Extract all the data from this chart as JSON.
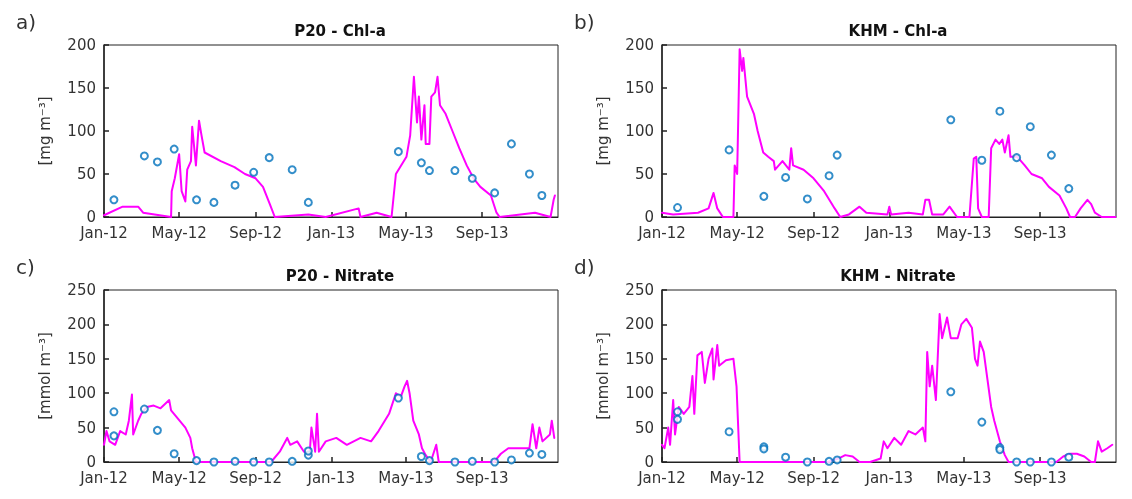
{
  "chart_data": [
    {
      "type": "line",
      "title": "P20 - Chl-a",
      "ylabel": "[mg m⁻³]",
      "annotations": [
        "a)"
      ],
      "xlim": [
        "2012-01-01",
        "2014-01-01"
      ],
      "xticks": [
        {
          "value": "2012-01-01",
          "label": "Jan-12"
        },
        {
          "value": "2012-05-01",
          "label": "May-12"
        },
        {
          "value": "2012-09-01",
          "label": "Sep-12"
        },
        {
          "value": "2013-01-01",
          "label": "Jan-13"
        },
        {
          "value": "2013-05-01",
          "label": "May-13"
        },
        {
          "value": "2013-09-01",
          "label": "Sep-13"
        }
      ],
      "ylim": [
        0,
        200
      ],
      "yticks": [
        0,
        50,
        100,
        150,
        200
      ],
      "grid": false,
      "series": [
        {
          "type": "line",
          "color": "#ff00ff",
          "marker": "none",
          "x": [
            "2012-01-01",
            "2012-01-31",
            "2012-02-25",
            "2012-03-04",
            "2012-04-18",
            "2012-04-19",
            "2012-04-24",
            "2012-05-01",
            "2012-05-05",
            "2012-05-11",
            "2012-05-14",
            "2012-05-20",
            "2012-05-22",
            "2012-05-28",
            "2012-06-02",
            "2012-06-06",
            "2012-06-11",
            "2012-07-07",
            "2012-07-29",
            "2012-08-15",
            "2012-09-01",
            "2012-09-13",
            "2012-09-24",
            "2012-10-02",
            "2012-11-25",
            "2012-12-23",
            "2013-02-14",
            "2013-02-17",
            "2013-03-15",
            "2013-04-08",
            "2013-04-15",
            "2013-05-02",
            "2013-05-08",
            "2013-05-14",
            "2013-05-19",
            "2013-05-22",
            "2013-05-26",
            "2013-05-31",
            "2013-06-02",
            "2013-06-08",
            "2013-06-11",
            "2013-06-17",
            "2013-06-21",
            "2013-06-25",
            "2013-07-04",
            "2013-07-15",
            "2013-07-26",
            "2013-08-07",
            "2013-08-18",
            "2013-08-29",
            "2013-09-15",
            "2013-09-24",
            "2013-09-29",
            "2013-11-25",
            "2013-12-20",
            "2013-12-25",
            "2013-12-27"
          ],
          "values": [
            2,
            12,
            12,
            5,
            0,
            30,
            45,
            73,
            30,
            18,
            55,
            65,
            105,
            60,
            112,
            95,
            75,
            65,
            58,
            50,
            45,
            35,
            15,
            0,
            3,
            0,
            10,
            0,
            5,
            0,
            50,
            70,
            95,
            163,
            110,
            140,
            90,
            130,
            85,
            85,
            140,
            145,
            163,
            130,
            120,
            100,
            80,
            60,
            45,
            35,
            25,
            5,
            0,
            5,
            0,
            20,
            25
          ]
        },
        {
          "type": "scatter",
          "color": "#0072bd",
          "marker": "circle",
          "x": [
            "2012-01-17",
            "2012-03-06",
            "2012-03-27",
            "2012-04-23",
            "2012-05-29",
            "2012-06-26",
            "2012-07-30",
            "2012-08-29",
            "2012-09-23",
            "2012-10-30",
            "2012-11-25",
            "2013-04-19",
            "2013-05-26",
            "2013-06-08",
            "2013-07-19",
            "2013-08-16",
            "2013-09-21",
            "2013-10-18",
            "2013-11-16",
            "2013-12-06"
          ],
          "values": [
            20,
            71,
            64,
            79,
            20,
            17,
            37,
            52,
            69,
            55,
            17,
            76,
            63,
            54,
            54,
            45,
            28,
            85,
            50,
            25
          ]
        }
      ]
    },
    {
      "type": "line",
      "title": "KHM - Chl-a",
      "ylabel": "[mg m⁻³]",
      "annotations": [
        "b)"
      ],
      "xlim": [
        "2012-01-01",
        "2014-01-01"
      ],
      "xticks": [
        {
          "value": "2012-01-01",
          "label": "Jan-12"
        },
        {
          "value": "2012-05-01",
          "label": "May-12"
        },
        {
          "value": "2012-09-01",
          "label": "Sep-12"
        },
        {
          "value": "2013-01-01",
          "label": "Jan-13"
        },
        {
          "value": "2013-05-01",
          "label": "May-13"
        },
        {
          "value": "2013-09-01",
          "label": "Sep-13"
        }
      ],
      "ylim": [
        0,
        200
      ],
      "yticks": [
        0,
        50,
        100,
        150,
        200
      ],
      "grid": false,
      "series": [
        {
          "type": "line",
          "color": "#ff00ff",
          "marker": "none",
          "x": [
            "2012-01-01",
            "2012-01-19",
            "2012-02-28",
            "2012-03-16",
            "2012-03-24",
            "2012-03-30",
            "2012-04-08",
            "2012-04-25",
            "2012-04-27",
            "2012-05-01",
            "2012-05-05",
            "2012-05-09",
            "2012-05-11",
            "2012-05-17",
            "2012-05-28",
            "2012-06-03",
            "2012-06-12",
            "2012-06-20",
            "2012-06-29",
            "2012-07-01",
            "2012-07-13",
            "2012-07-24",
            "2012-07-27",
            "2012-07-30",
            "2012-08-16",
            "2012-09-01",
            "2012-09-18",
            "2012-10-05",
            "2012-10-14",
            "2012-10-28",
            "2012-11-14",
            "2012-11-25",
            "2012-12-29",
            "2013-01-01",
            "2013-01-04",
            "2013-02-01",
            "2013-02-24",
            "2013-02-28",
            "2013-03-06",
            "2013-03-11",
            "2013-03-29",
            "2013-04-08",
            "2013-04-20",
            "2013-05-10",
            "2013-05-17",
            "2013-05-21",
            "2013-05-24",
            "2013-05-30",
            "2013-06-10",
            "2013-06-14",
            "2013-06-21",
            "2013-06-27",
            "2013-07-02",
            "2013-07-06",
            "2013-07-12",
            "2013-07-15",
            "2013-07-26",
            "2013-08-07",
            "2013-08-18",
            "2013-09-04",
            "2013-09-15",
            "2013-10-02",
            "2013-10-13",
            "2013-10-19",
            "2013-10-27",
            "2013-11-05",
            "2013-11-16",
            "2013-11-22",
            "2013-11-28",
            "2013-12-09",
            "2013-12-19",
            "2013-12-31"
          ],
          "values": [
            5,
            3,
            5,
            10,
            28,
            10,
            0,
            0,
            60,
            50,
            195,
            170,
            185,
            140,
            120,
            100,
            75,
            70,
            65,
            55,
            65,
            55,
            80,
            60,
            55,
            45,
            30,
            10,
            0,
            3,
            12,
            5,
            3,
            12,
            3,
            5,
            3,
            20,
            20,
            3,
            3,
            12,
            0,
            0,
            68,
            70,
            10,
            0,
            0,
            80,
            90,
            85,
            90,
            75,
            95,
            70,
            70,
            60,
            50,
            45,
            35,
            25,
            10,
            0,
            0,
            10,
            20,
            15,
            5,
            0,
            0,
            0
          ]
        },
        {
          "type": "scatter",
          "color": "#0072bd",
          "marker": "circle",
          "x": [
            "2012-01-26",
            "2012-04-18",
            "2012-06-13",
            "2012-07-18",
            "2012-08-22",
            "2012-09-26",
            "2012-10-09",
            "2013-04-10",
            "2013-05-30",
            "2013-06-28",
            "2013-07-25",
            "2013-08-16",
            "2013-09-19",
            "2013-10-17"
          ],
          "values": [
            11,
            78,
            24,
            46,
            21,
            48,
            72,
            113,
            66,
            123,
            69,
            105,
            72,
            33
          ]
        }
      ]
    },
    {
      "type": "line",
      "title": "P20 - Nitrate",
      "ylabel": "[mmol m⁻³]",
      "annotations": [
        "c)"
      ],
      "xlim": [
        "2012-01-01",
        "2014-01-01"
      ],
      "xticks": [
        {
          "value": "2012-01-01",
          "label": "Jan-12"
        },
        {
          "value": "2012-05-01",
          "label": "May-12"
        },
        {
          "value": "2012-09-01",
          "label": "Sep-12"
        },
        {
          "value": "2013-01-01",
          "label": "Jan-13"
        },
        {
          "value": "2013-05-01",
          "label": "May-13"
        },
        {
          "value": "2013-09-01",
          "label": "Sep-13"
        }
      ],
      "ylim": [
        0,
        250
      ],
      "yticks": [
        0,
        50,
        100,
        150,
        200,
        250
      ],
      "grid": false,
      "series": [
        {
          "type": "line",
          "color": "#ff00ff",
          "marker": "none",
          "x": [
            "2012-01-01",
            "2012-01-05",
            "2012-01-10",
            "2012-01-19",
            "2012-01-27",
            "2012-02-05",
            "2012-02-10",
            "2012-02-15",
            "2012-02-17",
            "2012-02-25",
            "2012-03-01",
            "2012-03-10",
            "2012-03-21",
            "2012-04-01",
            "2012-04-15",
            "2012-04-18",
            "2012-04-30",
            "2012-05-11",
            "2012-05-19",
            "2012-05-22",
            "2012-05-28",
            "2012-07-06",
            "2012-09-26",
            "2012-10-10",
            "2012-10-22",
            "2012-10-27",
            "2012-11-07",
            "2012-11-18",
            "2012-11-27",
            "2012-11-30",
            "2012-12-06",
            "2012-12-09",
            "2012-12-12",
            "2012-12-23",
            "2013-01-09",
            "2013-01-26",
            "2013-02-17",
            "2013-03-06",
            "2013-03-18",
            "2013-04-04",
            "2013-04-15",
            "2013-04-23",
            "2013-04-29",
            "2013-05-03",
            "2013-05-07",
            "2013-05-13",
            "2013-05-22",
            "2013-05-27",
            "2013-06-02",
            "2013-06-10",
            "2013-06-19",
            "2013-06-23",
            "2013-07-03",
            "2013-09-20",
            "2013-10-01",
            "2013-10-13",
            "2013-10-30",
            "2013-11-16",
            "2013-11-21",
            "2013-11-27",
            "2013-12-02",
            "2013-12-07",
            "2013-12-19",
            "2013-12-22",
            "2013-12-26"
          ],
          "values": [
            25,
            45,
            30,
            25,
            45,
            40,
            60,
            98,
            40,
            60,
            70,
            80,
            82,
            78,
            90,
            75,
            62,
            50,
            35,
            20,
            0,
            0,
            0,
            15,
            35,
            25,
            30,
            15,
            10,
            50,
            15,
            70,
            15,
            30,
            35,
            25,
            35,
            30,
            45,
            70,
            100,
            95,
            110,
            118,
            100,
            60,
            40,
            20,
            10,
            0,
            25,
            0,
            0,
            0,
            12,
            20,
            20,
            20,
            55,
            20,
            50,
            30,
            40,
            60,
            35
          ]
        },
        {
          "type": "scatter",
          "color": "#0072bd",
          "marker": "circle",
          "x": [
            "2012-01-17",
            "2012-01-17",
            "2012-03-06",
            "2012-03-27",
            "2012-04-23",
            "2012-05-29",
            "2012-06-26",
            "2012-07-30",
            "2012-08-29",
            "2012-09-23",
            "2012-10-30",
            "2012-11-25",
            "2012-11-25",
            "2013-04-19",
            "2013-05-26",
            "2013-06-08",
            "2013-07-19",
            "2013-08-16",
            "2013-09-21",
            "2013-10-18",
            "2013-11-16",
            "2013-12-06"
          ],
          "values": [
            73,
            38,
            77,
            46,
            12,
            2,
            0,
            1,
            0,
            0,
            1,
            10,
            16,
            93,
            8,
            2,
            0,
            1,
            0,
            3,
            13,
            11
          ]
        }
      ]
    },
    {
      "type": "line",
      "title": "KHM - Nitrate",
      "ylabel": "[mmol m⁻³]",
      "annotations": [
        "d)"
      ],
      "xlim": [
        "2012-01-01",
        "2014-01-01"
      ],
      "xticks": [
        {
          "value": "2012-01-01",
          "label": "Jan-12"
        },
        {
          "value": "2012-05-01",
          "label": "May-12"
        },
        {
          "value": "2012-09-01",
          "label": "Sep-12"
        },
        {
          "value": "2013-01-01",
          "label": "Jan-13"
        },
        {
          "value": "2013-05-01",
          "label": "May-13"
        },
        {
          "value": "2013-09-01",
          "label": "Sep-13"
        }
      ],
      "ylim": [
        0,
        250
      ],
      "yticks": [
        0,
        50,
        100,
        150,
        200,
        250
      ],
      "grid": false,
      "series": [
        {
          "type": "line",
          "color": "#ff00ff",
          "marker": "none",
          "x": [
            "2012-01-01",
            "2012-01-05",
            "2012-01-11",
            "2012-01-14",
            "2012-01-19",
            "2012-01-22",
            "2012-01-28",
            "2012-02-05",
            "2012-02-14",
            "2012-02-19",
            "2012-02-22",
            "2012-02-27",
            "2012-03-05",
            "2012-03-10",
            "2012-03-16",
            "2012-03-22",
            "2012-03-24",
            "2012-03-30",
            "2012-04-02",
            "2012-04-13",
            "2012-04-25",
            "2012-04-30",
            "2012-05-05",
            "2012-05-28",
            "2012-08-15",
            "2012-09-24",
            "2012-10-11",
            "2012-10-22",
            "2012-11-03",
            "2012-11-14",
            "2012-12-01",
            "2012-12-18",
            "2012-12-23",
            "2012-12-29",
            "2013-01-09",
            "2013-01-20",
            "2013-02-01",
            "2013-02-12",
            "2013-02-24",
            "2013-02-28",
            "2013-03-03",
            "2013-03-07",
            "2013-03-11",
            "2013-03-17",
            "2013-03-23",
            "2013-03-27",
            "2013-04-04",
            "2013-04-10",
            "2013-04-21",
            "2013-04-27",
            "2013-05-05",
            "2013-05-14",
            "2013-05-19",
            "2013-05-23",
            "2013-05-27",
            "2013-06-02",
            "2013-06-08",
            "2013-06-14",
            "2013-06-19",
            "2013-06-28",
            "2013-07-06",
            "2013-07-12",
            "2013-09-27",
            "2013-10-08",
            "2013-10-19",
            "2013-10-30",
            "2013-11-11",
            "2013-11-22",
            "2013-11-28",
            "2013-12-03",
            "2013-12-09",
            "2013-12-18",
            "2013-12-26"
          ],
          "values": [
            25,
            20,
            50,
            25,
            90,
            40,
            80,
            70,
            80,
            125,
            70,
            155,
            160,
            115,
            150,
            165,
            120,
            170,
            140,
            148,
            150,
            110,
            0,
            0,
            0,
            0,
            5,
            10,
            8,
            0,
            0,
            5,
            30,
            20,
            35,
            25,
            45,
            40,
            50,
            30,
            160,
            110,
            140,
            90,
            215,
            180,
            210,
            180,
            180,
            200,
            208,
            195,
            150,
            140,
            175,
            160,
            120,
            80,
            60,
            30,
            10,
            0,
            0,
            8,
            12,
            12,
            8,
            0,
            0,
            30,
            15,
            20,
            25
          ]
        },
        {
          "type": "scatter",
          "color": "#0072bd",
          "marker": "circle",
          "x": [
            "2012-01-26",
            "2012-01-26",
            "2012-04-18",
            "2012-06-13",
            "2012-06-13",
            "2012-07-18",
            "2012-08-22",
            "2012-09-26",
            "2012-10-09",
            "2013-04-10",
            "2013-05-30",
            "2013-06-28",
            "2013-06-28",
            "2013-07-25",
            "2013-08-16",
            "2013-09-19",
            "2013-10-17"
          ],
          "values": [
            73,
            62,
            44,
            22,
            19,
            7,
            0,
            1,
            3,
            102,
            58,
            21,
            18,
            0,
            0,
            0,
            7
          ]
        }
      ]
    }
  ]
}
